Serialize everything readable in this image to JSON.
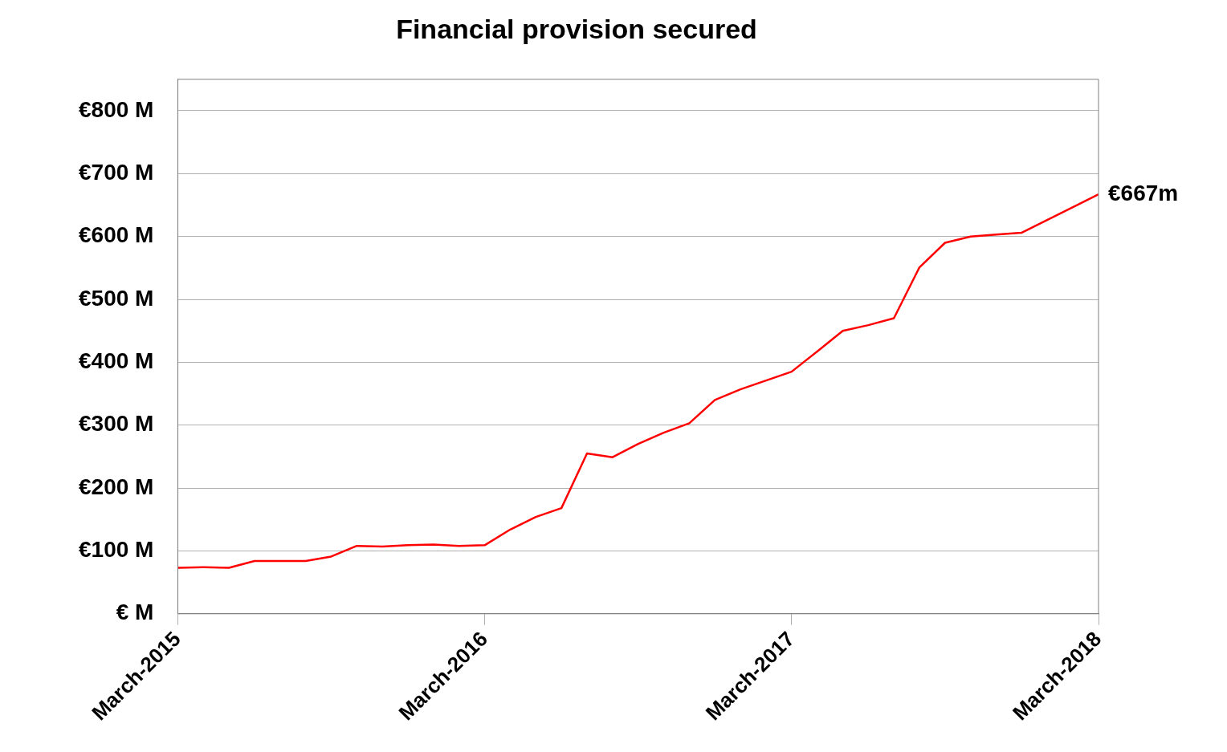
{
  "chart_data": {
    "type": "line",
    "title": "Financial provision secured",
    "x": [
      "2015-03",
      "2015-04",
      "2015-05",
      "2015-06",
      "2015-07",
      "2015-08",
      "2015-09",
      "2015-10",
      "2015-11",
      "2015-12",
      "2016-01",
      "2016-02",
      "2016-03",
      "2016-04",
      "2016-05",
      "2016-06",
      "2016-07",
      "2016-08",
      "2016-09",
      "2016-10",
      "2016-11",
      "2016-12",
      "2017-01",
      "2017-02",
      "2017-03",
      "2017-04",
      "2017-05",
      "2017-06",
      "2017-07",
      "2017-08",
      "2017-09",
      "2017-10",
      "2017-11",
      "2017-12",
      "2018-03"
    ],
    "series": [
      {
        "color": "#ff0000",
        "values": [
          73,
          74,
          73,
          84,
          84,
          84,
          91,
          108,
          107,
          109,
          110,
          108,
          109,
          134,
          154,
          168,
          255,
          249,
          270,
          288,
          303,
          340,
          357,
          371,
          385,
          417,
          450,
          459,
          470,
          551,
          590,
          600,
          603,
          606,
          667
        ]
      }
    ],
    "xlim": [
      "2015-03",
      "2018-03"
    ],
    "xticks": [
      {
        "value": "2015-03",
        "label": "March-2015"
      },
      {
        "value": "2016-03",
        "label": "March-2016"
      },
      {
        "value": "2017-03",
        "label": "March-2017"
      },
      {
        "value": "2018-03",
        "label": "March-2018"
      }
    ],
    "ylim": [
      0,
      850
    ],
    "yticks": [
      {
        "value": 0,
        "label": "€ M"
      },
      {
        "value": 100,
        "label": "€100 M"
      },
      {
        "value": 200,
        "label": "€200 M"
      },
      {
        "value": 300,
        "label": "€300 M"
      },
      {
        "value": 400,
        "label": "€400 M"
      },
      {
        "value": 500,
        "label": "€500 M"
      },
      {
        "value": 600,
        "label": "€600 M"
      },
      {
        "value": 700,
        "label": "€700 M"
      },
      {
        "value": 800,
        "label": "€800 M"
      }
    ],
    "annotations": [
      {
        "text": "€667m",
        "x": "2018-03",
        "y": 667
      }
    ],
    "grid": "y",
    "legend": false,
    "marker": "none",
    "line_style": "solid"
  }
}
